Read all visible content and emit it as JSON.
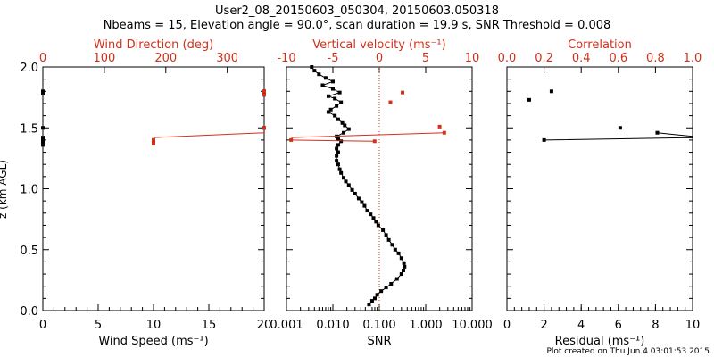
{
  "title_line1": "User2_08_20150603_050304, 20150603.050318",
  "title_line2": "Nbeams = 15, Elevation angle = 90.0°, scan duration = 19.9 s, SNR Threshold = 0.008",
  "footer": "Plot created on Thu Jun  4 03:01:53 2015",
  "colors": {
    "axis": "#000000",
    "red": "#d0301c",
    "dotted": "#d0301c"
  },
  "chart_data": [
    {
      "type": "scatter",
      "name": "wind",
      "ylabel": "z (km AGL)",
      "ylim": [
        0,
        2
      ],
      "yticks": [
        "0.0",
        "0.5",
        "1.0",
        "1.5",
        "2.0"
      ],
      "bottom_axis": {
        "label": "Wind Speed (ms⁻¹)",
        "range": [
          0,
          20
        ],
        "ticks": [
          "0",
          "5",
          "10",
          "15",
          "20"
        ]
      },
      "top_axis": {
        "label": "Wind Direction (deg)",
        "range": [
          0,
          360
        ],
        "ticks": [
          "0",
          "100",
          "200",
          "300"
        ]
      },
      "speed": [
        [
          0.0,
          1.8
        ],
        [
          0.0,
          1.78
        ],
        [
          0.0,
          1.5
        ],
        [
          0.0,
          1.42
        ],
        [
          0.0,
          1.4
        ],
        [
          0.0,
          1.38
        ],
        [
          0.0,
          1.36
        ],
        [
          10.0,
          1.4
        ],
        [
          10.0,
          1.37
        ],
        [
          20.0,
          1.8
        ],
        [
          20.0,
          1.78
        ],
        [
          20.0,
          1.5
        ]
      ],
      "direction": [
        [
          180,
          1.4
        ],
        [
          180,
          1.37
        ],
        [
          360,
          1.8
        ],
        [
          360,
          1.77
        ],
        [
          360,
          1.5
        ]
      ],
      "direction_line": [
        [
          180,
          1.42
        ],
        [
          360,
          1.46
        ]
      ]
    },
    {
      "type": "line",
      "name": "snr",
      "bottom_axis": {
        "label": "SNR",
        "scale": "log",
        "range": [
          0.001,
          10
        ],
        "ticks": [
          "0.001",
          "0.010",
          "0.100",
          "1.000",
          "10.000"
        ]
      },
      "top_axis": {
        "label": "Vertical velocity (ms⁻¹)",
        "range": [
          -10,
          10
        ],
        "ticks": [
          "-10",
          "-5",
          "0",
          "5",
          "10"
        ]
      },
      "reference_line_snr": 0.1,
      "snr_profile": [
        [
          0.06,
          0.05
        ],
        [
          0.07,
          0.08
        ],
        [
          0.08,
          0.1
        ],
        [
          0.09,
          0.13
        ],
        [
          0.11,
          0.16
        ],
        [
          0.14,
          0.19
        ],
        [
          0.18,
          0.22
        ],
        [
          0.24,
          0.26
        ],
        [
          0.3,
          0.3
        ],
        [
          0.33,
          0.33
        ],
        [
          0.35,
          0.36
        ],
        [
          0.34,
          0.39
        ],
        [
          0.3,
          0.43
        ],
        [
          0.26,
          0.47
        ],
        [
          0.22,
          0.5
        ],
        [
          0.19,
          0.54
        ],
        [
          0.16,
          0.58
        ],
        [
          0.14,
          0.62
        ],
        [
          0.12,
          0.66
        ],
        [
          0.095,
          0.7
        ],
        [
          0.085,
          0.73
        ],
        [
          0.075,
          0.76
        ],
        [
          0.065,
          0.79
        ],
        [
          0.055,
          0.82
        ],
        [
          0.048,
          0.86
        ],
        [
          0.042,
          0.89
        ],
        [
          0.036,
          0.92
        ],
        [
          0.03,
          0.96
        ],
        [
          0.026,
          0.99
        ],
        [
          0.022,
          1.03
        ],
        [
          0.019,
          1.06
        ],
        [
          0.017,
          1.09
        ],
        [
          0.015,
          1.13
        ],
        [
          0.014,
          1.16
        ],
        [
          0.013,
          1.2
        ],
        [
          0.012,
          1.23
        ],
        [
          0.012,
          1.27
        ],
        [
          0.013,
          1.3
        ],
        [
          0.012,
          1.33
        ],
        [
          0.013,
          1.36
        ],
        [
          0.015,
          1.39
        ],
        [
          0.013,
          1.41
        ],
        [
          0.012,
          1.43
        ],
        [
          0.017,
          1.46
        ],
        [
          0.022,
          1.49
        ],
        [
          0.018,
          1.52
        ],
        [
          0.016,
          1.54
        ],
        [
          0.013,
          1.57
        ],
        [
          0.011,
          1.6
        ],
        [
          0.008,
          1.63
        ],
        [
          0.009,
          1.65
        ],
        [
          0.012,
          1.68
        ],
        [
          0.015,
          1.71
        ],
        [
          0.011,
          1.74
        ],
        [
          0.008,
          1.76
        ],
        [
          0.014,
          1.79
        ],
        [
          0.01,
          1.82
        ],
        [
          0.006,
          1.85
        ],
        [
          0.01,
          1.88
        ],
        [
          0.007,
          1.91
        ],
        [
          0.005,
          1.94
        ],
        [
          0.004,
          1.97
        ],
        [
          0.0035,
          2.0
        ]
      ],
      "vertical_velocity": [
        [
          -9.5,
          1.4
        ],
        [
          -0.5,
          1.39
        ],
        [
          1.2,
          1.71
        ],
        [
          2.5,
          1.79
        ],
        [
          6.5,
          1.51
        ],
        [
          7.0,
          1.46
        ]
      ],
      "velocity_line": [
        [
          -9.5,
          1.42
        ],
        [
          7.0,
          1.46
        ]
      ]
    },
    {
      "type": "scatter",
      "name": "residual",
      "bottom_axis": {
        "label": "Residual (ms⁻¹)",
        "range": [
          0,
          10
        ],
        "ticks": [
          "0",
          "2",
          "4",
          "6",
          "8",
          "10"
        ]
      },
      "top_axis": {
        "label": "Correlation",
        "range": [
          0,
          1
        ],
        "ticks": [
          "0.0",
          "0.2",
          "0.4",
          "0.6",
          "0.8",
          "1.0"
        ]
      },
      "points": [
        [
          1.2,
          1.73
        ],
        [
          2.4,
          1.8
        ],
        [
          6.1,
          1.5
        ],
        [
          8.1,
          1.46
        ],
        [
          2.0,
          1.4
        ]
      ],
      "polyline": [
        [
          2.0,
          1.4
        ],
        [
          10,
          1.42
        ],
        [
          10,
          1.38
        ]
      ],
      "polyline2": [
        [
          8.1,
          1.46
        ],
        [
          10,
          1.43
        ]
      ]
    }
  ]
}
